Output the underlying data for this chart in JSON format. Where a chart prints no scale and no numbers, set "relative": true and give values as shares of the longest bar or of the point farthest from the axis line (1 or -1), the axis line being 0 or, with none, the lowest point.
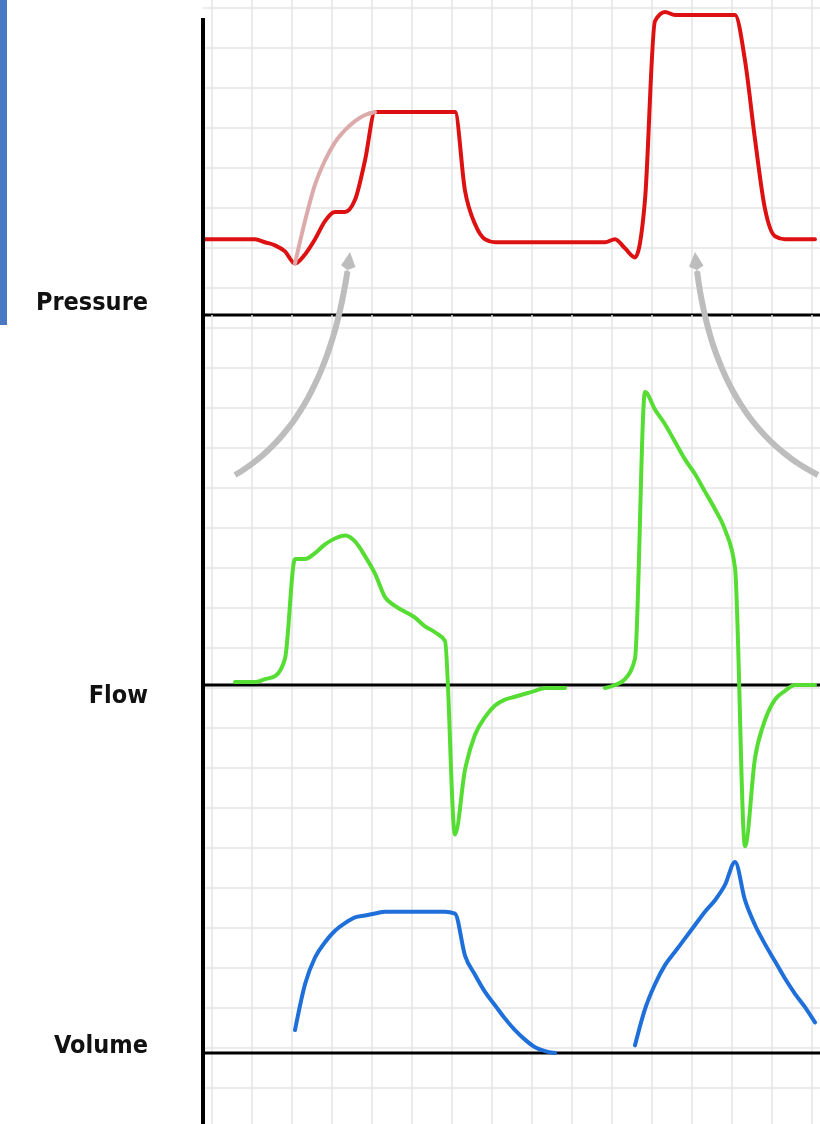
{
  "chart_data": [
    {
      "type": "line",
      "ylabel": "Pressure",
      "relative": true,
      "grid": true,
      "categories": [
        null,
        null,
        null,
        null,
        null,
        null,
        null,
        null,
        null,
        null,
        null,
        null,
        null,
        null,
        null,
        null,
        null,
        null,
        null,
        null,
        null,
        null,
        null,
        null,
        null,
        null,
        null,
        null,
        null,
        null,
        null,
        null,
        null,
        null,
        null,
        null,
        null,
        null,
        null,
        null,
        null,
        null,
        null,
        null,
        null,
        null,
        null,
        null,
        null,
        null,
        null,
        null,
        null,
        null,
        null,
        null,
        null,
        null,
        null,
        null,
        null,
        null
      ],
      "series": [
        {
          "color": "#dd1111",
          "values": [
            0.25,
            0.25,
            0.25,
            0.25,
            0.25,
            0.25,
            0.24,
            0.23,
            0.21,
            0.17,
            0.2,
            0.25,
            0.31,
            0.34,
            0.34,
            0.38,
            0.51,
            0.67,
            0.67,
            0.67,
            0.67,
            0.67,
            0.67,
            0.67,
            0.67,
            0.67,
            0.41,
            0.3,
            0.25,
            0.24,
            0.24,
            0.24,
            0.24,
            0.24,
            0.24,
            0.24,
            0.24,
            0.24,
            0.24,
            0.24,
            0.24,
            0.25,
            0.22,
            0.19,
            0.38,
            0.97,
            1,
            0.99,
            0.99,
            0.99,
            0.99,
            0.99,
            0.99,
            0.99,
            0.84,
            0.58,
            0.35,
            0.26,
            0.25,
            0.25,
            0.25,
            0.25
          ]
        },
        {
          "color": "#dcaaaa",
          "values": [
            null,
            null,
            null,
            null,
            null,
            null,
            null,
            null,
            null,
            0.17,
            0.31,
            0.43,
            0.51,
            0.57,
            0.61,
            0.64,
            0.66,
            0.67,
            null,
            null,
            null,
            null,
            null,
            null,
            null,
            null,
            null,
            null,
            null,
            null,
            null,
            null,
            null,
            null,
            null,
            null,
            null,
            null,
            null,
            null,
            null,
            null,
            null,
            null,
            null,
            null,
            null,
            null,
            null,
            null,
            null,
            null,
            null,
            null,
            null,
            null,
            null,
            null,
            null,
            null,
            null,
            null
          ]
        }
      ]
    },
    {
      "type": "line",
      "ylabel": "Flow",
      "relative": true,
      "grid": true,
      "categories": [
        null,
        null,
        null,
        null,
        null,
        null,
        null,
        null,
        null,
        null,
        null,
        null,
        null,
        null,
        null,
        null,
        null,
        null,
        null,
        null,
        null,
        null,
        null,
        null,
        null,
        null,
        null,
        null,
        null,
        null,
        null,
        null,
        null,
        null,
        null,
        null,
        null,
        null,
        null,
        null,
        null,
        null,
        null,
        null,
        null,
        null,
        null,
        null,
        null,
        null,
        null,
        null,
        null,
        null,
        null,
        null,
        null,
        null,
        null,
        null,
        null,
        null
      ],
      "series": [
        {
          "color": "#55dd33",
          "values": [
            null,
            null,
            null,
            0.01,
            0.01,
            0.01,
            0.02,
            0.03,
            0.09,
            0.43,
            0.43,
            0.45,
            0.48,
            0.5,
            0.51,
            0.49,
            0.44,
            0.38,
            0.3,
            0.27,
            0.25,
            0.23,
            0.2,
            0.18,
            0.15,
            -0.51,
            -0.29,
            -0.17,
            -0.11,
            -0.07,
            -0.05,
            -0.04,
            -0.03,
            -0.02,
            -0.01,
            -0.01,
            -0.01,
            null,
            null,
            null,
            -0.01,
            0,
            0.02,
            0.09,
            1,
            0.94,
            0.89,
            0.83,
            0.77,
            0.72,
            0.66,
            0.6,
            0.53,
            0.4,
            -0.55,
            -0.25,
            -0.12,
            -0.05,
            -0.02,
            0,
            0,
            0
          ]
        }
      ]
    },
    {
      "type": "line",
      "ylabel": "Volume",
      "relative": true,
      "grid": true,
      "categories": [
        null,
        null,
        null,
        null,
        null,
        null,
        null,
        null,
        null,
        null,
        null,
        null,
        null,
        null,
        null,
        null,
        null,
        null,
        null,
        null,
        null,
        null,
        null,
        null,
        null,
        null,
        null,
        null,
        null,
        null,
        null,
        null,
        null,
        null,
        null,
        null,
        null,
        null,
        null,
        null,
        null,
        null,
        null,
        null,
        null,
        null,
        null,
        null,
        null,
        null,
        null,
        null,
        null,
        null,
        null,
        null,
        null,
        null,
        null,
        null,
        null,
        null
      ],
      "series": [
        {
          "color": "#1e6fd9",
          "values": [
            null,
            null,
            null,
            null,
            null,
            null,
            null,
            null,
            null,
            0.12,
            0.36,
            0.5,
            0.58,
            0.64,
            0.68,
            0.71,
            0.72,
            0.73,
            0.74,
            0.74,
            0.74,
            0.74,
            0.74,
            0.74,
            0.74,
            0.73,
            0.51,
            0.41,
            0.32,
            0.25,
            0.18,
            0.12,
            0.07,
            0.03,
            0.01,
            0,
            null,
            null,
            null,
            null,
            null,
            null,
            null,
            0.04,
            0.23,
            0.36,
            0.46,
            0.53,
            0.6,
            0.67,
            0.74,
            0.8,
            0.88,
            1,
            0.8,
            0.67,
            0.57,
            0.48,
            0.39,
            0.31,
            0.24,
            0.16
          ]
        }
      ]
    }
  ]
}
